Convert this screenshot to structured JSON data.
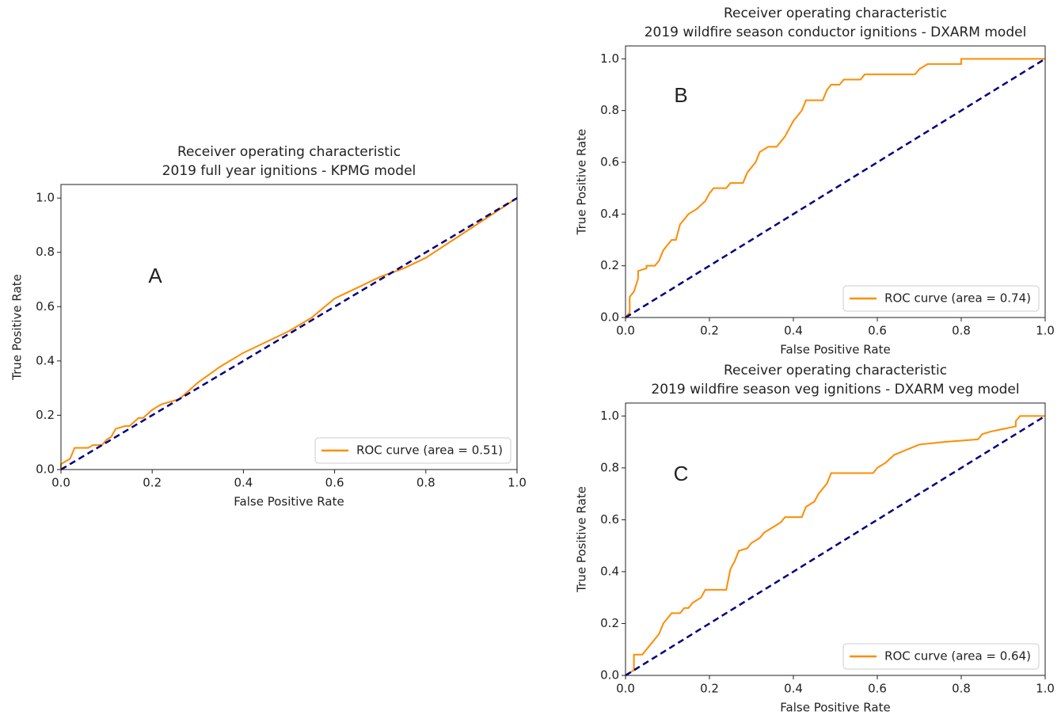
{
  "chart_data": [
    {
      "type": "line",
      "title": "Receiver operating characteristic",
      "subtitle": "2019 full year ignitions - KPMG model",
      "panel_label": "A",
      "xlabel": "False Positive Rate",
      "ylabel": "True Positive Rate",
      "xlim": [
        0,
        1
      ],
      "ylim": [
        0,
        1.05
      ],
      "legend": "lower right",
      "xticks": [
        {
          "value": 0,
          "label": "0.0"
        },
        0.2,
        0.4,
        0.6,
        0.8,
        {
          "value": 1,
          "label": "1.0"
        }
      ],
      "yticks": [
        {
          "value": 0,
          "label": "0.0"
        },
        0.2,
        0.4,
        0.6,
        0.8,
        {
          "value": 1,
          "label": "1.0"
        }
      ],
      "series": [
        {
          "name": "ROC curve (area = 0.51)",
          "color": "#ff8c00",
          "linestyle": "solid",
          "x": [
            0,
            0,
            0.02,
            0.03,
            0.06,
            0.07,
            0.09,
            0.1,
            0.11,
            0.12,
            0.14,
            0.15,
            0.17,
            0.18,
            0.2,
            0.22,
            0.24,
            0.26,
            0.3,
            0.35,
            0.4,
            0.45,
            0.5,
            0.55,
            0.6,
            0.65,
            0.7,
            0.75,
            0.8,
            0.9,
            1
          ],
          "values": [
            0,
            0.02,
            0.04,
            0.08,
            0.08,
            0.09,
            0.09,
            0.11,
            0.12,
            0.15,
            0.16,
            0.16,
            0.19,
            0.19,
            0.22,
            0.24,
            0.25,
            0.26,
            0.32,
            0.38,
            0.43,
            0.47,
            0.51,
            0.56,
            0.63,
            0.67,
            0.71,
            0.74,
            0.78,
            0.89,
            1
          ]
        },
        {
          "color": "#000080",
          "linestyle": "dashed",
          "x": [
            0,
            1
          ],
          "values": [
            0,
            1
          ]
        }
      ]
    },
    {
      "type": "line",
      "title": "Receiver operating characteristic",
      "subtitle": "2019 wildfire season conductor ignitions - DXARM model",
      "panel_label": "B",
      "xlabel": "False Positive Rate",
      "ylabel": "True Positive Rate",
      "xlim": [
        0,
        1
      ],
      "ylim": [
        0,
        1.05
      ],
      "legend": "lower right",
      "xticks": [
        {
          "value": 0,
          "label": "0.0"
        },
        0.2,
        0.4,
        0.6,
        0.8,
        {
          "value": 1,
          "label": "1.0"
        }
      ],
      "yticks": [
        {
          "value": 0,
          "label": "0.0"
        },
        0.2,
        0.4,
        0.6,
        0.8,
        {
          "value": 1,
          "label": "1.0"
        }
      ],
      "series": [
        {
          "name": "ROC curve (area = 0.74)",
          "color": "#ff8c00",
          "linestyle": "solid",
          "x": [
            0,
            0.01,
            0.01,
            0.02,
            0.03,
            0.03,
            0.05,
            0.05,
            0.07,
            0.08,
            0.09,
            0.1,
            0.11,
            0.12,
            0.13,
            0.14,
            0.15,
            0.17,
            0.19,
            0.2,
            0.21,
            0.24,
            0.25,
            0.28,
            0.29,
            0.3,
            0.31,
            0.32,
            0.34,
            0.36,
            0.37,
            0.38,
            0.4,
            0.41,
            0.42,
            0.43,
            0.47,
            0.48,
            0.49,
            0.51,
            0.52,
            0.56,
            0.57,
            0.69,
            0.7,
            0.72,
            0.8,
            0.8,
            1
          ],
          "values": [
            0,
            0.02,
            0.08,
            0.1,
            0.15,
            0.18,
            0.19,
            0.2,
            0.2,
            0.22,
            0.26,
            0.28,
            0.3,
            0.3,
            0.36,
            0.38,
            0.4,
            0.42,
            0.45,
            0.48,
            0.5,
            0.5,
            0.52,
            0.52,
            0.56,
            0.58,
            0.6,
            0.64,
            0.66,
            0.66,
            0.68,
            0.7,
            0.76,
            0.78,
            0.8,
            0.84,
            0.84,
            0.88,
            0.9,
            0.9,
            0.92,
            0.92,
            0.94,
            0.94,
            0.96,
            0.98,
            0.98,
            1,
            1
          ]
        },
        {
          "color": "#000080",
          "linestyle": "dashed",
          "x": [
            0,
            1
          ],
          "values": [
            0,
            1
          ]
        }
      ]
    },
    {
      "type": "line",
      "title": "Receiver operating characteristic",
      "subtitle": "2019 wildfire season veg ignitions - DXARM veg model",
      "panel_label": "C",
      "xlabel": "False Positive Rate",
      "ylabel": "True Positive Rate",
      "xlim": [
        0,
        1
      ],
      "ylim": [
        0,
        1.05
      ],
      "legend": "lower right",
      "xticks": [
        {
          "value": 0,
          "label": "0.0"
        },
        0.2,
        0.4,
        0.6,
        0.8,
        {
          "value": 1,
          "label": "1.0"
        }
      ],
      "yticks": [
        {
          "value": 0,
          "label": "0.0"
        },
        0.2,
        0.4,
        0.6,
        0.8,
        {
          "value": 1,
          "label": "1.0"
        }
      ],
      "series": [
        {
          "name": "ROC curve (area = 0.64)",
          "color": "#ff8c00",
          "linestyle": "solid",
          "x": [
            0,
            0.02,
            0.02,
            0.04,
            0.05,
            0.06,
            0.08,
            0.09,
            0.1,
            0.11,
            0.13,
            0.14,
            0.15,
            0.16,
            0.18,
            0.19,
            0.24,
            0.25,
            0.26,
            0.27,
            0.29,
            0.3,
            0.32,
            0.33,
            0.35,
            0.37,
            0.38,
            0.42,
            0.43,
            0.45,
            0.46,
            0.48,
            0.49,
            0.59,
            0.6,
            0.62,
            0.64,
            0.67,
            0.7,
            0.76,
            0.84,
            0.85,
            0.87,
            0.93,
            0.93,
            0.94,
            1
          ],
          "values": [
            0,
            0.02,
            0.08,
            0.08,
            0.1,
            0.12,
            0.16,
            0.2,
            0.22,
            0.24,
            0.24,
            0.26,
            0.26,
            0.28,
            0.3,
            0.33,
            0.33,
            0.41,
            0.44,
            0.48,
            0.49,
            0.51,
            0.53,
            0.55,
            0.57,
            0.59,
            0.61,
            0.61,
            0.65,
            0.67,
            0.7,
            0.74,
            0.78,
            0.78,
            0.8,
            0.82,
            0.85,
            0.87,
            0.89,
            0.9,
            0.91,
            0.93,
            0.94,
            0.96,
            0.98,
            1,
            1
          ]
        },
        {
          "color": "#000080",
          "linestyle": "dashed",
          "x": [
            0,
            1
          ],
          "values": [
            0,
            1
          ]
        }
      ]
    }
  ]
}
